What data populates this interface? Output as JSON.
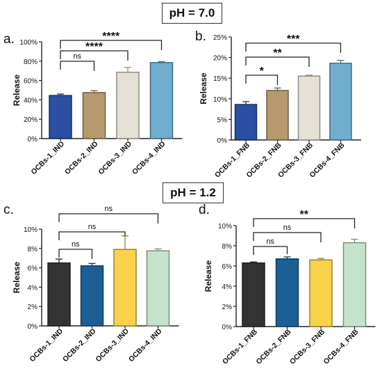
{
  "headings": {
    "top": "pH = 7.0",
    "bottom": "pH = 1.2"
  },
  "chart_data": [
    {
      "type": "bar",
      "panel_label": "a.",
      "categories": [
        "OCBs-1_IND",
        "OCBs-2_IND",
        "OCBs-3_IND",
        "OCBs-4_IND"
      ],
      "values": [
        0.445,
        0.475,
        0.685,
        0.785
      ],
      "errors": [
        0.015,
        0.02,
        0.05,
        0.01
      ],
      "colors": [
        "#2b4fa3",
        "#b59a6e",
        "#e6e1d6",
        "#6faecf"
      ],
      "ylabel": "Release",
      "ylim": [
        0,
        1
      ],
      "yticks": [
        "0%",
        "20%",
        "40%",
        "60%",
        "80%",
        "100%"
      ],
      "brackets": [
        {
          "from": 0,
          "to": 1,
          "label": "ns"
        },
        {
          "from": 0,
          "to": 2,
          "label": "****"
        },
        {
          "from": 0,
          "to": 3,
          "label": "****"
        }
      ]
    },
    {
      "type": "bar",
      "panel_label": "b.",
      "categories": [
        "OCBs-1_FNB",
        "OCBs-2_FNB",
        "OCBs-3_FNB",
        "OCBs-4_FNB"
      ],
      "values": [
        0.086,
        0.12,
        0.155,
        0.186
      ],
      "errors": [
        0.007,
        0.006,
        0.002,
        0.007
      ],
      "colors": [
        "#2b4fa3",
        "#b59a6e",
        "#e6e1d6",
        "#6faecf"
      ],
      "ylabel": "Release",
      "ylim": [
        0,
        0.25
      ],
      "yticks": [
        "0%",
        "5%",
        "10%",
        "15%",
        "20%",
        "25%"
      ],
      "brackets": [
        {
          "from": 0,
          "to": 1,
          "label": "*"
        },
        {
          "from": 0,
          "to": 2,
          "label": "**"
        },
        {
          "from": 0,
          "to": 3,
          "label": "***"
        }
      ]
    },
    {
      "type": "bar",
      "panel_label": "c.",
      "categories": [
        "OCBs-1_IND",
        "OCBs-2_IND",
        "OCBs-3_IND",
        "OCBs-4_IND"
      ],
      "values": [
        0.065,
        0.062,
        0.079,
        0.0775
      ],
      "errors": [
        0.004,
        0.0025,
        0.014,
        0.002
      ],
      "colors": [
        "#333333",
        "#1b5f96",
        "#f8d24a",
        "#c5e3cc"
      ],
      "ylabel": "Release",
      "ylim": [
        0,
        0.1
      ],
      "yticks": [
        "0%",
        "2%",
        "4%",
        "6%",
        "8%",
        "10%"
      ],
      "brackets": [
        {
          "from": 0,
          "to": 1,
          "label": "ns"
        },
        {
          "from": 0,
          "to": 2,
          "label": "ns"
        },
        {
          "from": 0,
          "to": 3,
          "label": "ns"
        }
      ]
    },
    {
      "type": "bar",
      "panel_label": "d.",
      "categories": [
        "OCBs-1_FNB",
        "OCBs-2_FNB",
        "OCBs-3_FNB",
        "OCBs-4_FNB"
      ],
      "values": [
        0.063,
        0.067,
        0.066,
        0.083
      ],
      "errors": [
        0.001,
        0.002,
        0.0015,
        0.0035
      ],
      "colors": [
        "#333333",
        "#1b5f96",
        "#f8d24a",
        "#c5e3cc"
      ],
      "ylabel": "Release",
      "ylim": [
        0,
        0.1
      ],
      "yticks": [
        "0%",
        "2%",
        "4%",
        "6%",
        "8%",
        "10%"
      ],
      "brackets": [
        {
          "from": 0,
          "to": 1,
          "label": "ns"
        },
        {
          "from": 0,
          "to": 2,
          "label": "ns"
        },
        {
          "from": 0,
          "to": 3,
          "label": "**"
        }
      ]
    }
  ]
}
